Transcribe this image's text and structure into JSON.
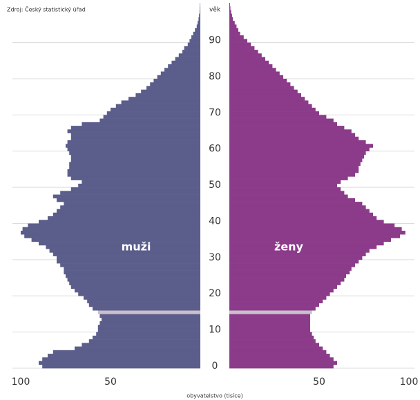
{
  "chart_data": {
    "type": "population_pyramid",
    "source": "Zdroj: Český statistický úřad",
    "y_label": "věk",
    "x_label": "obyvatelstvo (tisíce)",
    "ylim": [
      0,
      101
    ],
    "yticks": [
      0,
      10,
      20,
      30,
      40,
      50,
      60,
      70,
      80,
      90
    ],
    "xlim": [
      0,
      100
    ],
    "xticks": [
      50,
      100
    ],
    "grid": true,
    "highlight_age": 15,
    "highlight_color": "#c9c0cc",
    "series": [
      {
        "name": "muži",
        "side": "left",
        "color": "#5b5d8b",
        "values": [
          88,
          90,
          88,
          85,
          82,
          70,
          66,
          62,
          60,
          58,
          57,
          57,
          56,
          55,
          56,
          57,
          60,
          62,
          63,
          65,
          68,
          70,
          72,
          73,
          74,
          75,
          76,
          76,
          78,
          80,
          80,
          82,
          84,
          86,
          90,
          94,
          98,
          100,
          99,
          96,
          90,
          85,
          82,
          80,
          78,
          76,
          80,
          82,
          78,
          72,
          68,
          66,
          72,
          74,
          74,
          73,
          73,
          72,
          72,
          73,
          74,
          75,
          74,
          72,
          72,
          74,
          72,
          66,
          56,
          54,
          52,
          50,
          47,
          44,
          40,
          36,
          33,
          30,
          28,
          26,
          24,
          22,
          20,
          18,
          16,
          14,
          12,
          10,
          9,
          7,
          6,
          5,
          4,
          3,
          2,
          1.5,
          1,
          0.7,
          0.4,
          0.3,
          0.2
        ]
      },
      {
        "name": "ženy",
        "side": "right",
        "color": "#8b3b89",
        "values": [
          58,
          60,
          58,
          56,
          54,
          52,
          50,
          48,
          47,
          46,
          45,
          45,
          45,
          45,
          45,
          46,
          48,
          50,
          52,
          54,
          56,
          58,
          60,
          62,
          64,
          65,
          67,
          68,
          70,
          72,
          74,
          76,
          78,
          82,
          86,
          90,
          95,
          98,
          96,
          92,
          86,
          82,
          80,
          78,
          76,
          74,
          70,
          66,
          64,
          62,
          60,
          62,
          66,
          70,
          72,
          72,
          73,
          74,
          75,
          76,
          78,
          80,
          76,
          72,
          70,
          68,
          64,
          60,
          58,
          54,
          50,
          48,
          46,
          44,
          42,
          40,
          38,
          36,
          34,
          32,
          30,
          28,
          26,
          24,
          22,
          20,
          18,
          16,
          14,
          12,
          10,
          8,
          6,
          5,
          4,
          3,
          2,
          1.5,
          1,
          0.6,
          0.4
        ]
      }
    ]
  }
}
